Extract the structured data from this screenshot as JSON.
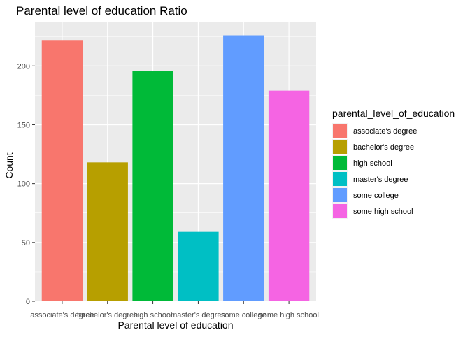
{
  "chart_data": {
    "type": "bar",
    "title": "Parental level of education Ratio",
    "xlabel": "Parental level of education",
    "ylabel": "Count",
    "categories": [
      "associate's degree",
      "bachelor's degree",
      "high school",
      "master's degree",
      "some college",
      "some high school"
    ],
    "values": [
      222,
      118,
      196,
      59,
      226,
      179
    ],
    "colors": [
      "#F8766D",
      "#B79F00",
      "#00BA38",
      "#00BFC4",
      "#619CFF",
      "#F564E3"
    ],
    "ylim": [
      0,
      237
    ],
    "yticks": [
      0,
      50,
      100,
      150,
      200
    ],
    "grid": true,
    "panel_background": "#EBEBEB",
    "legend": {
      "title": "parental_level_of_education",
      "position": "right",
      "items": [
        "associate's degree",
        "bachelor's degree",
        "high school",
        "master's degree",
        "some college",
        "some high school"
      ]
    }
  }
}
